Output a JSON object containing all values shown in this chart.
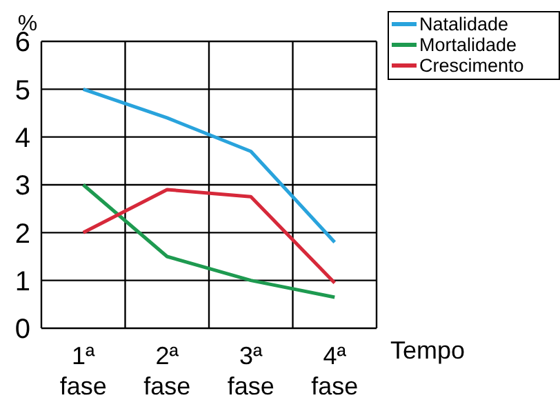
{
  "chart_data": {
    "type": "line",
    "ylabel": "%",
    "xlabel": "Tempo",
    "categories": [
      "1ª fase",
      "2ª fase",
      "3ª fase",
      "4ª fase"
    ],
    "series": [
      {
        "name": "Natalidade",
        "color": "#29a3dc",
        "values": [
          5,
          4.4,
          3.7,
          1.8
        ]
      },
      {
        "name": "Mortalidade",
        "color": "#1e9a50",
        "values": [
          3,
          1.5,
          1.0,
          0.65
        ]
      },
      {
        "name": "Crescimento",
        "color": "#d6293a",
        "values": [
          2,
          2.9,
          2.75,
          0.95
        ]
      }
    ],
    "ylim": [
      0,
      6
    ],
    "yticks": [
      0,
      1,
      2,
      3,
      4,
      5,
      6
    ],
    "grid": true,
    "legend": "top right",
    "marker": "none",
    "line_style": "solid"
  }
}
